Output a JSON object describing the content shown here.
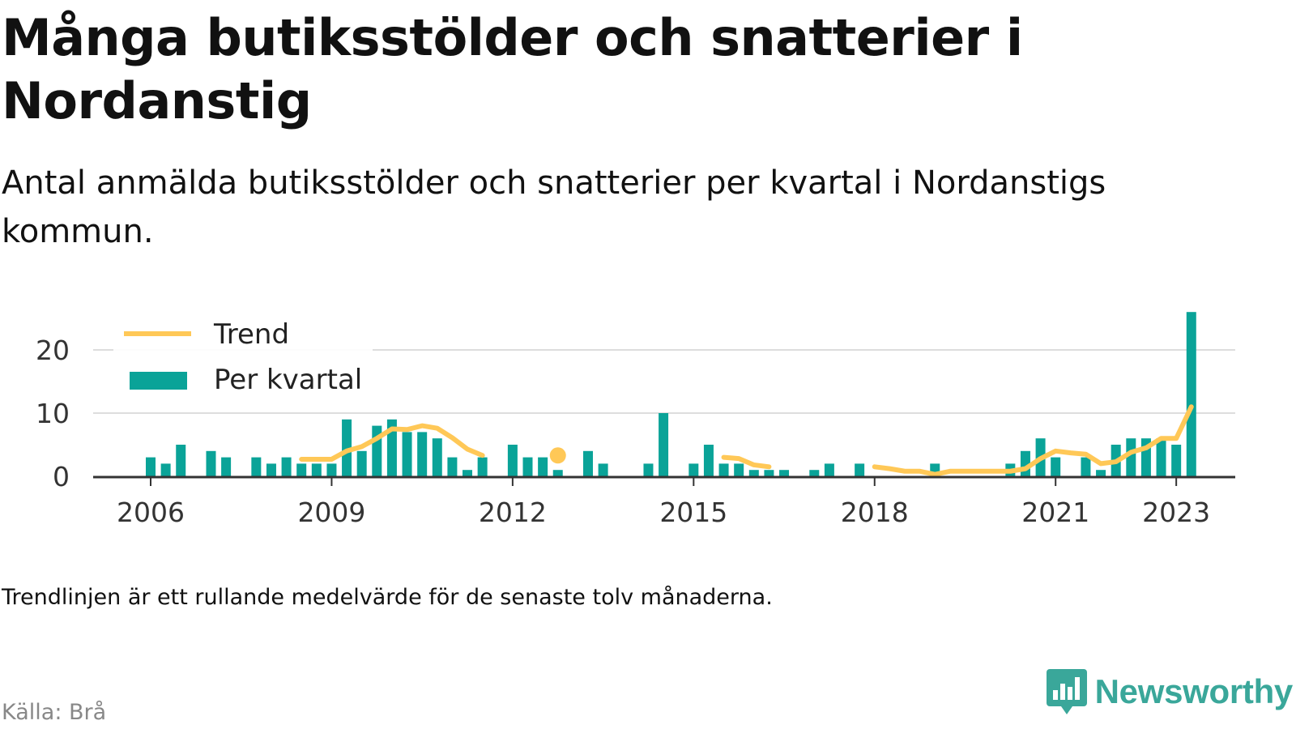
{
  "title": "Många butiksstölder och snatterier i Nordanstig",
  "subtitle": "Antal anmälda butiksstölder och snatterier per kvartal i Nordanstigs kommun.",
  "note": "Trendlinjen är ett rullande medelvärde för de senaste tolv månaderna.",
  "source": "Källa: Brå",
  "brand": "Newsworthy",
  "colors": {
    "bars": "#0aa398",
    "trend": "#ffc857",
    "grid": "#dddddd",
    "axis": "#333333"
  },
  "chart_data": {
    "type": "bar",
    "title": "",
    "xlabel": "",
    "ylabel": "",
    "ylim": [
      0,
      26
    ],
    "y_ticks": [
      0,
      10,
      20
    ],
    "grid": true,
    "legend_position": "top-left",
    "x_ticks": [
      {
        "label": "2006",
        "quarter": 1
      },
      {
        "label": "2009",
        "quarter": 13
      },
      {
        "label": "2012",
        "quarter": 25
      },
      {
        "label": "2015",
        "quarter": 37
      },
      {
        "label": "2018",
        "quarter": 49
      },
      {
        "label": "2021",
        "quarter": 61
      },
      {
        "label": "2023",
        "quarter": 69
      }
    ],
    "series": [
      {
        "name": "Per kvartal",
        "type": "bar",
        "values": [
          3,
          2,
          5,
          0,
          4,
          3,
          0,
          3,
          2,
          3,
          2,
          2,
          2,
          9,
          4,
          8,
          9,
          7,
          7,
          6,
          3,
          1,
          3,
          0,
          5,
          3,
          3,
          1,
          0,
          4,
          2,
          0,
          0,
          2,
          10,
          0,
          2,
          5,
          2,
          2,
          1,
          1,
          1,
          0,
          1,
          2,
          0,
          2,
          0,
          0,
          0,
          0,
          2,
          0,
          0,
          0,
          0,
          2,
          4,
          6,
          3,
          0,
          3,
          1,
          5,
          6,
          6,
          6,
          5,
          26
        ]
      },
      {
        "name": "Trend",
        "type": "line",
        "values": [
          null,
          null,
          null,
          null,
          null,
          null,
          null,
          null,
          null,
          null,
          2.7,
          2.7,
          2.7,
          4,
          4.7,
          6,
          7.5,
          7.4,
          8,
          7.6,
          6.1,
          4.3,
          3.3,
          null,
          null,
          null,
          null,
          3.3,
          null,
          null,
          null,
          null,
          null,
          null,
          null,
          null,
          null,
          null,
          3,
          2.8,
          1.8,
          1.5,
          null,
          null,
          null,
          null,
          null,
          null,
          1.5,
          1.2,
          0.8,
          0.8,
          0.3,
          0.8,
          0.8,
          0.8,
          0.8,
          0.8,
          1.2,
          2.8,
          4,
          3.7,
          3.5,
          2,
          2.3,
          3.8,
          4.5,
          6,
          6,
          11
        ]
      }
    ]
  }
}
